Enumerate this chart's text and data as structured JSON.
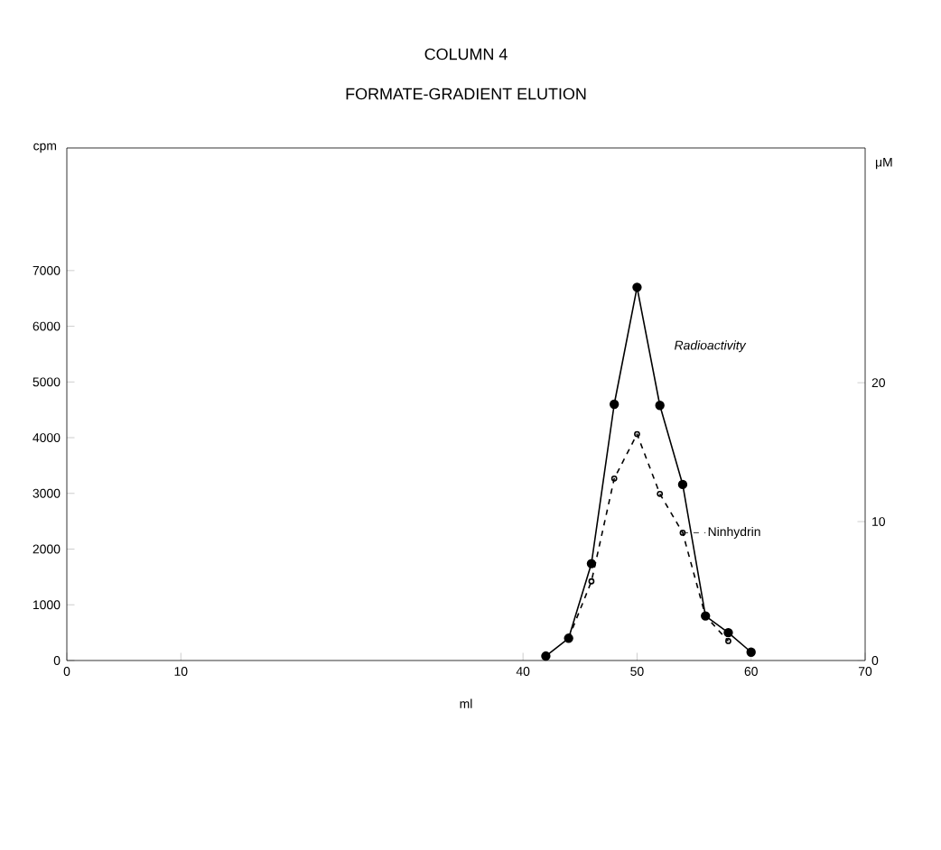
{
  "chart_data": {
    "type": "line",
    "title": "COLUMN 4",
    "subtitle": "FORMATE-GRADIENT ELUTION",
    "xlabel": "ml",
    "ylabel": "cpm",
    "y2label": "μM",
    "xlim": [
      0,
      70
    ],
    "xticks": [
      0,
      10,
      40,
      50,
      60,
      70
    ],
    "ylim": [
      0,
      9200
    ],
    "yticks": [
      0,
      1000,
      2000,
      3000,
      4000,
      5000,
      6000,
      7000
    ],
    "y2lim": [
      0,
      36.9
    ],
    "y2ticks": [
      0,
      10,
      20
    ],
    "marker": "circle",
    "grid": false,
    "legend": "right",
    "series": [
      {
        "name": "Radioactivity",
        "color": "#000000",
        "line_style": "solid",
        "x": [
          42,
          44,
          46,
          48,
          50,
          52,
          54,
          56,
          58,
          60
        ],
        "values": [
          80,
          400,
          1740,
          4600,
          6700,
          4580,
          3160,
          800,
          500,
          150
        ]
      },
      {
        "name": "Ninhydrin",
        "color": "#000000",
        "line_style": "dashed",
        "axis": "y2",
        "x": [
          44,
          46,
          48,
          50,
          52,
          54,
          56,
          58
        ],
        "values": [
          1.6,
          5.7,
          13.1,
          16.3,
          12.0,
          9.2,
          3.2,
          1.4
        ]
      }
    ]
  }
}
